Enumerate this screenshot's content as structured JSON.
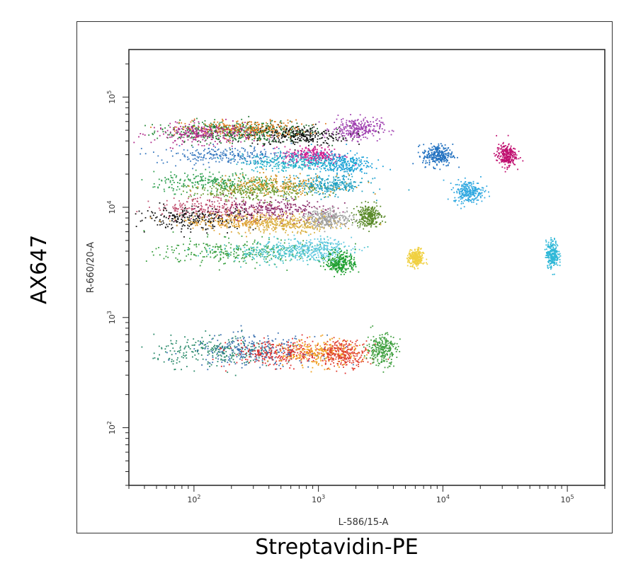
{
  "outer_labels": {
    "y": "AX647",
    "x": "Streptavidin-PE"
  },
  "chart_data": {
    "type": "scatter",
    "title": "",
    "xlabel": "L-586/15-A",
    "ylabel": "R-660/20-A",
    "xscale": "log",
    "yscale": "log",
    "xlim": [
      30,
      200000
    ],
    "ylim": [
      30,
      270000
    ],
    "x_ticks": [
      {
        "value": 100,
        "base": "10",
        "exp": "2"
      },
      {
        "value": 1000,
        "base": "10",
        "exp": "3"
      },
      {
        "value": 10000,
        "base": "10",
        "exp": "4"
      },
      {
        "value": 100000,
        "base": "10",
        "exp": "5"
      }
    ],
    "y_ticks": [
      {
        "value": 100,
        "base": "10",
        "exp": "2"
      },
      {
        "value": 1000,
        "base": "10",
        "exp": "3"
      },
      {
        "value": 10000,
        "base": "10",
        "exp": "4"
      },
      {
        "value": 100000,
        "base": "10",
        "exp": "5"
      }
    ],
    "grid": false,
    "legend": "none",
    "clusters": [
      {
        "cx": 150,
        "cy": 50000,
        "sx": 0.25,
        "sy": 0.045,
        "color": "#2a8a3a"
      },
      {
        "cx": 350,
        "cy": 48000,
        "sx": 0.25,
        "sy": 0.045,
        "color": "#1a6a2a"
      },
      {
        "cx": 700,
        "cy": 45000,
        "sx": 0.2,
        "sy": 0.045,
        "color": "#111111"
      },
      {
        "cx": 250,
        "cy": 52000,
        "sx": 0.25,
        "sy": 0.04,
        "color": "#e07b20"
      },
      {
        "cx": 120,
        "cy": 47000,
        "sx": 0.2,
        "sy": 0.045,
        "color": "#b02a8a"
      },
      {
        "cx": 2000,
        "cy": 52000,
        "sx": 0.1,
        "sy": 0.05,
        "color": "#a040b0"
      },
      {
        "cx": 900,
        "cy": 30000,
        "sx": 0.12,
        "sy": 0.04,
        "color": "#d02090"
      },
      {
        "cx": 200,
        "cy": 30000,
        "sx": 0.3,
        "sy": 0.04,
        "color": "#3a7ac0"
      },
      {
        "cx": 1500,
        "cy": 25000,
        "sx": 0.12,
        "sy": 0.05,
        "color": "#1aa0d8"
      },
      {
        "cx": 600,
        "cy": 26000,
        "sx": 0.2,
        "sy": 0.04,
        "color": "#20b0c8"
      },
      {
        "cx": 150,
        "cy": 17000,
        "sx": 0.25,
        "sy": 0.045,
        "color": "#30a050"
      },
      {
        "cx": 450,
        "cy": 16000,
        "sx": 0.25,
        "sy": 0.045,
        "color": "#d09020"
      },
      {
        "cx": 1200,
        "cy": 16000,
        "sx": 0.15,
        "sy": 0.045,
        "color": "#20a0c0"
      },
      {
        "cx": 300,
        "cy": 14000,
        "sx": 0.25,
        "sy": 0.04,
        "color": "#6a9a30"
      },
      {
        "cx": 150,
        "cy": 10000,
        "sx": 0.25,
        "sy": 0.05,
        "color": "#c05070"
      },
      {
        "cx": 400,
        "cy": 9500,
        "sx": 0.25,
        "sy": 0.05,
        "color": "#8a2a6a"
      },
      {
        "cx": 100,
        "cy": 8000,
        "sx": 0.25,
        "sy": 0.05,
        "color": "#111111"
      },
      {
        "cx": 250,
        "cy": 7500,
        "sx": 0.25,
        "sy": 0.04,
        "color": "#e0a030"
      },
      {
        "cx": 600,
        "cy": 7000,
        "sx": 0.2,
        "sy": 0.04,
        "color": "#d8b040"
      },
      {
        "cx": 1200,
        "cy": 8000,
        "sx": 0.1,
        "sy": 0.04,
        "color": "#a0a0a0"
      },
      {
        "cx": 2500,
        "cy": 8500,
        "sx": 0.05,
        "sy": 0.05,
        "color": "#5a8a2a"
      },
      {
        "cx": 200,
        "cy": 4000,
        "sx": 0.3,
        "sy": 0.06,
        "color": "#3aa040"
      },
      {
        "cx": 500,
        "cy": 4000,
        "sx": 0.25,
        "sy": 0.05,
        "color": "#40c0c0"
      },
      {
        "cx": 900,
        "cy": 4200,
        "sx": 0.15,
        "sy": 0.05,
        "color": "#60c8e0"
      },
      {
        "cx": 1500,
        "cy": 3200,
        "sx": 0.06,
        "sy": 0.05,
        "color": "#20a030"
      },
      {
        "cx": 6000,
        "cy": 3500,
        "sx": 0.03,
        "sy": 0.04,
        "color": "#f0d040"
      },
      {
        "cx": 9000,
        "cy": 30000,
        "sx": 0.06,
        "sy": 0.05,
        "color": "#2070c0"
      },
      {
        "cx": 16000,
        "cy": 14000,
        "sx": 0.06,
        "sy": 0.05,
        "color": "#30a8e0"
      },
      {
        "cx": 32000,
        "cy": 30000,
        "sx": 0.04,
        "sy": 0.05,
        "color": "#c01070"
      },
      {
        "cx": 75000,
        "cy": 3800,
        "sx": 0.025,
        "sy": 0.06,
        "color": "#30b8d8"
      },
      {
        "cx": 150,
        "cy": 500,
        "sx": 0.25,
        "sy": 0.07,
        "color": "#2a8a6a"
      },
      {
        "cx": 300,
        "cy": 500,
        "sx": 0.25,
        "sy": 0.07,
        "color": "#3a70b0"
      },
      {
        "cx": 500,
        "cy": 480,
        "sx": 0.2,
        "sy": 0.06,
        "color": "#e03030"
      },
      {
        "cx": 1000,
        "cy": 480,
        "sx": 0.15,
        "sy": 0.06,
        "color": "#f0a020"
      },
      {
        "cx": 1600,
        "cy": 480,
        "sx": 0.1,
        "sy": 0.06,
        "color": "#e04030"
      },
      {
        "cx": 3200,
        "cy": 520,
        "sx": 0.06,
        "sy": 0.07,
        "color": "#40a040"
      }
    ]
  }
}
